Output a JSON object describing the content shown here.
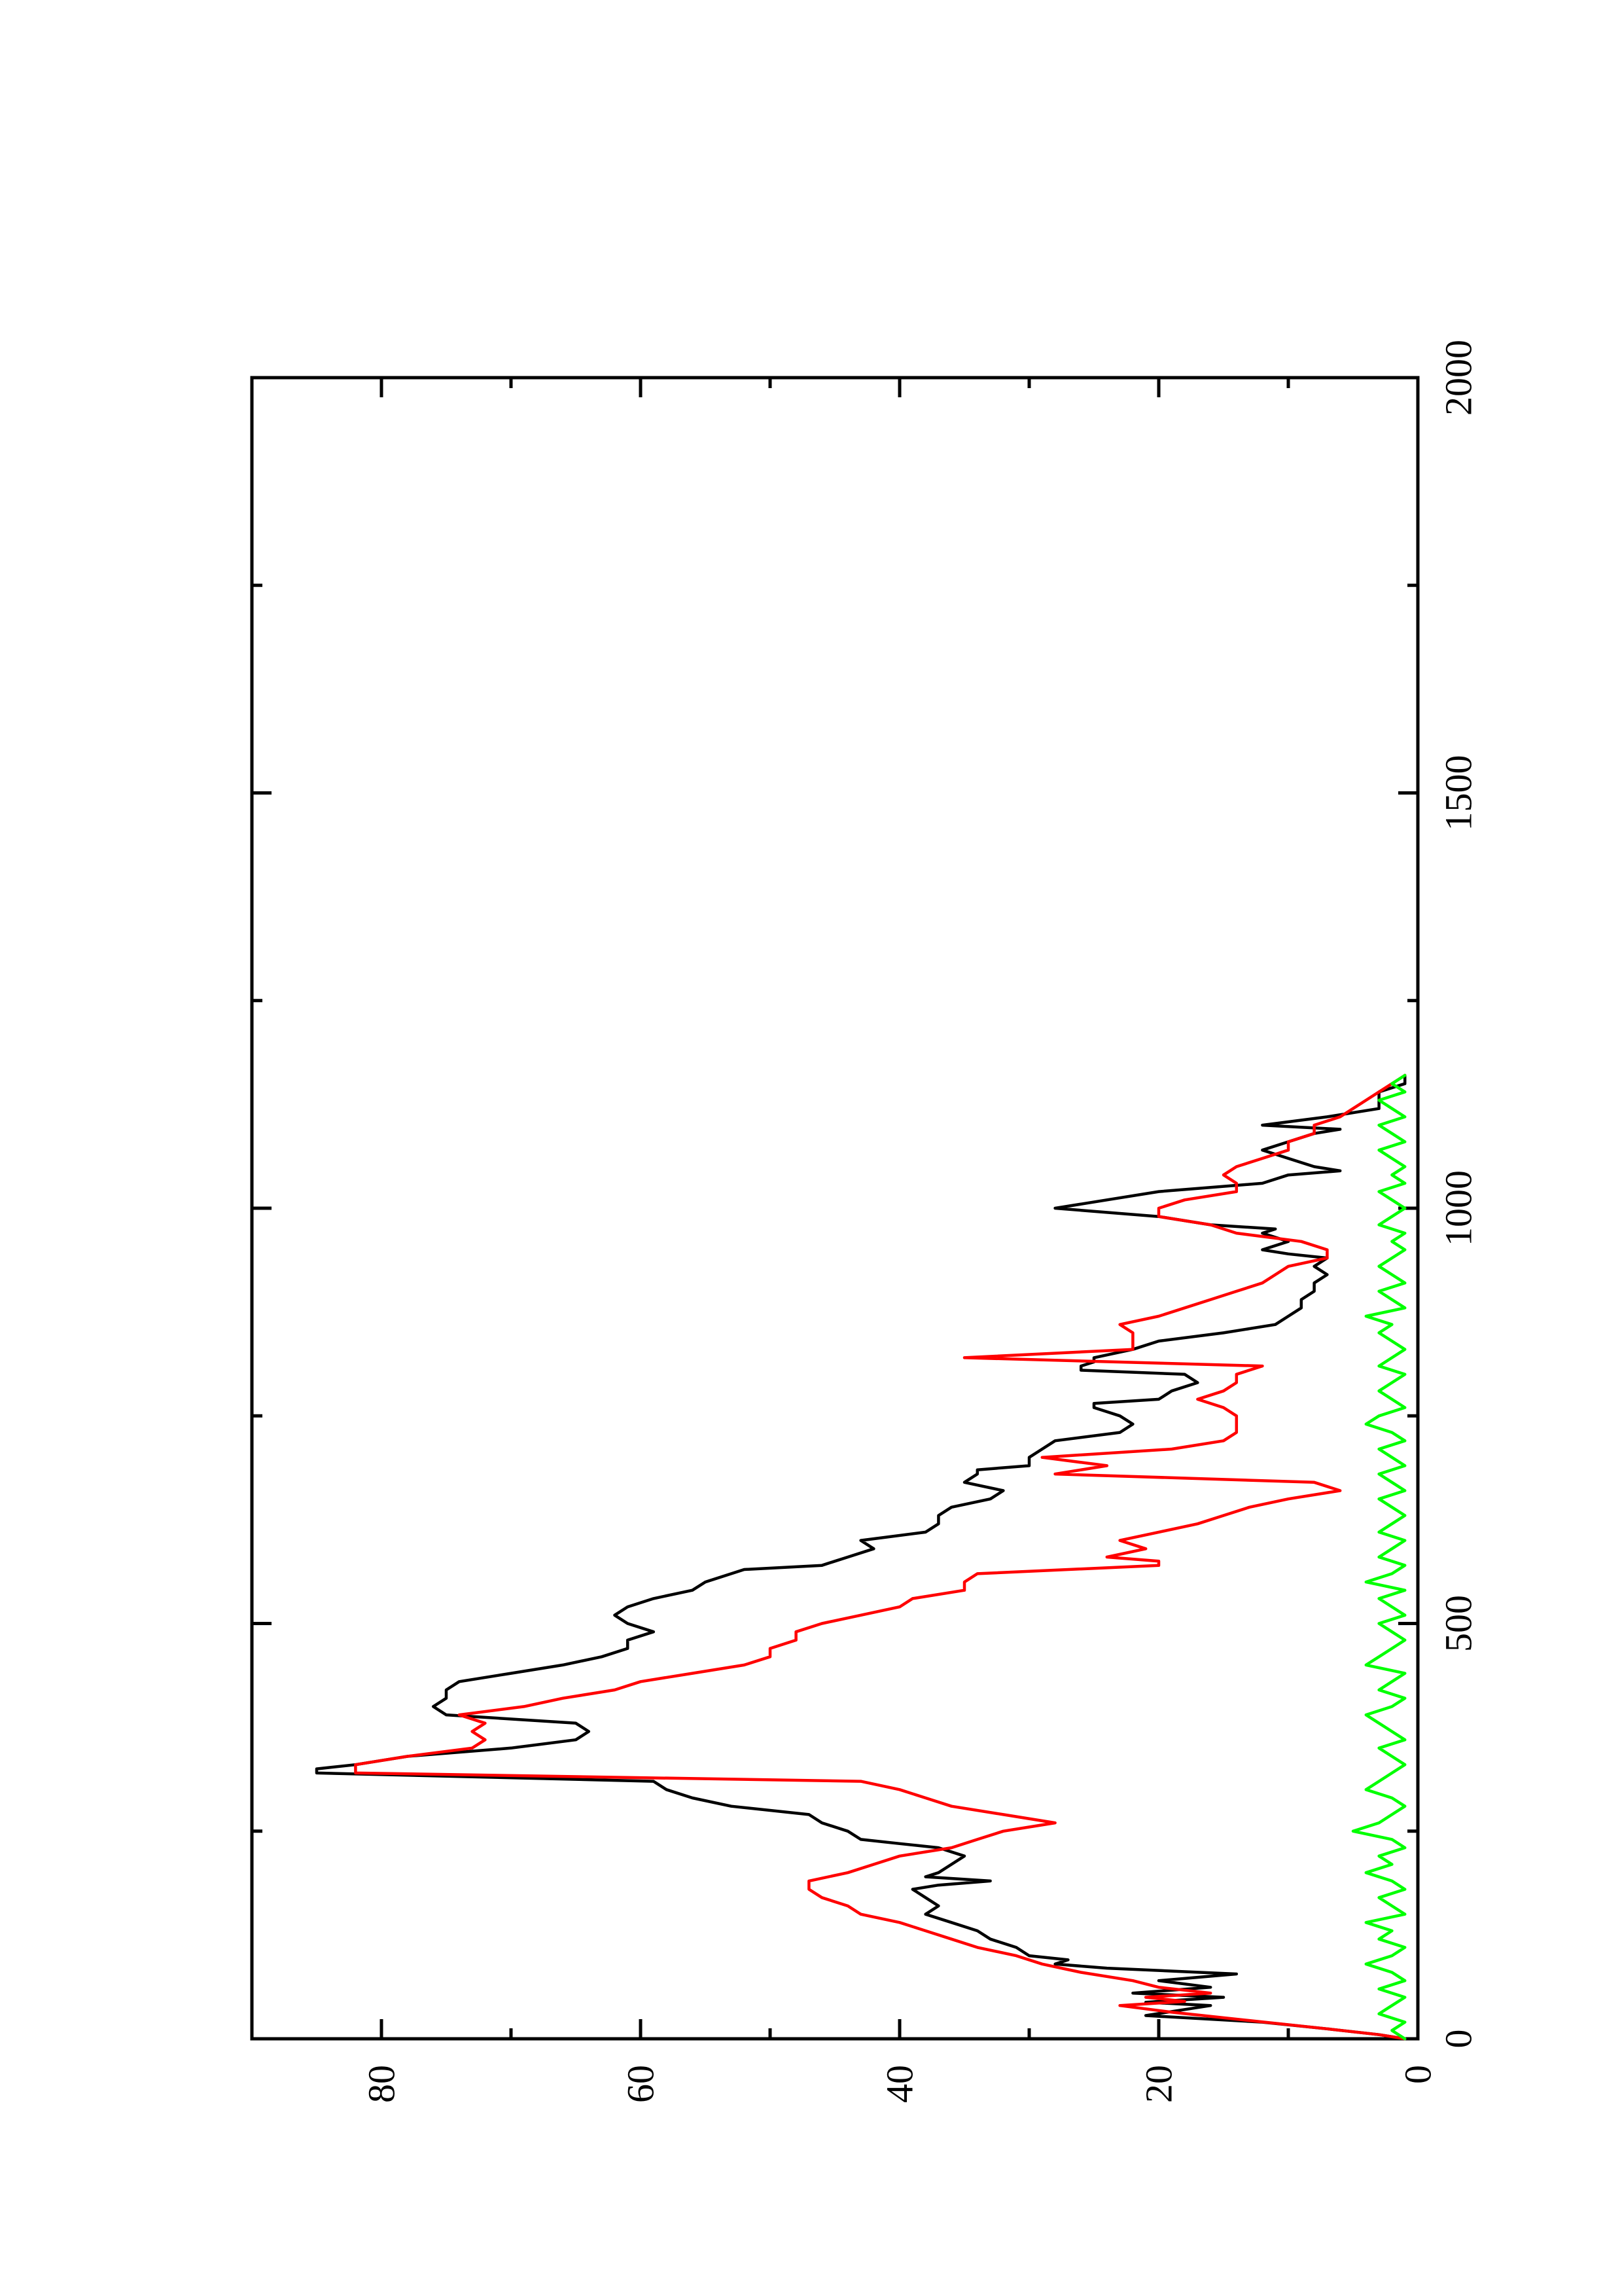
{
  "chart_data": {
    "type": "line",
    "orientation": "rotated-90",
    "title": "",
    "xlabel": "",
    "ylabel": "",
    "xlim": [
      0,
      2000
    ],
    "ylim": [
      0,
      90
    ],
    "x_ticks": [
      0,
      500,
      1000,
      1500,
      2000
    ],
    "x_minor_ticks": [
      250,
      750,
      1250,
      1750
    ],
    "y_ticks": [
      0,
      20,
      40,
      60,
      80
    ],
    "y_minor_ticks": [
      10,
      30,
      50,
      70
    ],
    "x_tick_labels": [
      "0",
      "500",
      "1000",
      "1500",
      "2000"
    ],
    "y_tick_labels": [
      "0",
      "20",
      "40",
      "60",
      "80"
    ],
    "grid": false,
    "legend": "none",
    "series": [
      {
        "color": "#000000",
        "x": [
          0,
          5,
          12,
          20,
          28,
          40,
          44,
          50,
          55,
          62,
          70,
          78,
          85,
          90,
          95,
          100,
          110,
          120,
          130,
          140,
          150,
          160,
          170,
          180,
          185,
          190,
          195,
          200,
          210,
          220,
          230,
          235,
          240,
          250,
          260,
          270,
          280,
          290,
          300,
          310,
          320,
          325,
          330,
          340,
          350,
          360,
          370,
          380,
          390,
          400,
          410,
          420,
          430,
          440,
          450,
          460,
          470,
          480,
          490,
          500,
          510,
          520,
          530,
          540,
          550,
          560,
          565,
          570,
          575,
          580,
          590,
          600,
          610,
          620,
          630,
          640,
          650,
          660,
          670,
          680,
          685,
          690,
          700,
          710,
          720,
          730,
          740,
          750,
          760,
          765,
          770,
          780,
          790,
          800,
          805,
          810,
          815,
          820,
          830,
          840,
          850,
          860,
          870,
          880,
          890,
          900,
          910,
          920,
          930,
          940,
          945,
          950,
          960,
          970,
          975,
          980,
          990,
          1000,
          1010,
          1020,
          1030,
          1040,
          1045,
          1050,
          1060,
          1070,
          1080,
          1090,
          1095,
          1100,
          1110,
          1120,
          1130,
          1140,
          1150,
          1160
        ],
        "y": [
          1,
          3,
          7,
          12,
          21,
          16,
          21,
          15,
          22,
          16,
          20,
          14,
          24,
          28,
          27,
          30,
          31,
          33,
          34,
          36,
          38,
          37,
          38,
          39,
          37,
          33,
          38,
          37,
          36,
          35,
          37,
          40,
          43,
          44,
          46,
          47,
          53,
          56,
          58,
          59,
          85,
          85,
          82,
          78,
          70,
          65,
          64,
          65,
          75,
          76,
          75,
          75,
          74,
          70,
          66,
          63,
          61,
          61,
          59,
          61,
          62,
          61,
          59,
          56,
          55,
          53,
          52,
          46,
          45,
          44,
          42,
          43,
          38,
          37,
          37,
          36,
          33,
          32,
          35,
          34,
          34,
          30,
          30,
          29,
          28,
          23,
          22,
          23,
          25,
          25,
          20,
          19,
          17,
          18,
          26,
          26,
          25,
          25,
          22,
          20,
          15,
          11,
          10,
          9,
          9,
          8,
          8,
          7,
          8,
          7,
          10,
          12,
          10,
          12,
          11,
          16,
          20,
          28,
          24,
          20,
          12,
          10,
          6,
          8,
          10,
          12,
          10,
          8,
          6,
          12,
          7,
          3,
          3,
          3,
          1,
          1
        ]
      },
      {
        "color": "#ff0000",
        "x": [
          0,
          5,
          12,
          22,
          32,
          40,
          45,
          50,
          55,
          62,
          70,
          80,
          90,
          100,
          110,
          120,
          130,
          140,
          150,
          160,
          170,
          180,
          190,
          200,
          210,
          220,
          230,
          240,
          250,
          260,
          270,
          280,
          290,
          300,
          310,
          320,
          330,
          340,
          350,
          360,
          370,
          380,
          390,
          400,
          410,
          420,
          430,
          440,
          450,
          460,
          470,
          480,
          490,
          500,
          510,
          520,
          530,
          540,
          550,
          560,
          570,
          575,
          580,
          590,
          600,
          610,
          620,
          630,
          640,
          650,
          660,
          670,
          680,
          690,
          700,
          710,
          720,
          730,
          740,
          750,
          760,
          770,
          780,
          790,
          800,
          810,
          820,
          830,
          840,
          850,
          860,
          870,
          880,
          890,
          900,
          910,
          920,
          930,
          940,
          950,
          960,
          970,
          980,
          990,
          1000,
          1010,
          1020,
          1030,
          1040,
          1050,
          1060,
          1070,
          1080,
          1090,
          1100,
          1110,
          1120,
          1130,
          1140,
          1150,
          1160
        ],
        "y": [
          1,
          3,
          7,
          13,
          19,
          23,
          18,
          21,
          16,
          20,
          22,
          26,
          29,
          31,
          34,
          36,
          38,
          40,
          43,
          44,
          46,
          47,
          47,
          44,
          42,
          40,
          36,
          34,
          32,
          28,
          32,
          36,
          38,
          40,
          43,
          82,
          82,
          78,
          73,
          72,
          73,
          72,
          74,
          69,
          66,
          62,
          60,
          56,
          52,
          50,
          50,
          48,
          48,
          46,
          43,
          40,
          39,
          35,
          35,
          34,
          20,
          20,
          24,
          21,
          23,
          20,
          17,
          15,
          13,
          10,
          6,
          8,
          28,
          24,
          29,
          19,
          15,
          14,
          14,
          14,
          15,
          17,
          15,
          14,
          14,
          12,
          35,
          22,
          22,
          22,
          23,
          20,
          18,
          16,
          14,
          12,
          11,
          10,
          7,
          7,
          9,
          14,
          16,
          20,
          20,
          18,
          14,
          14,
          15,
          14,
          12,
          10,
          10,
          8,
          8,
          6,
          5,
          4,
          3,
          2,
          1
        ]
      },
      {
        "color": "#00ff00",
        "x": [
          0,
          10,
          20,
          30,
          40,
          50,
          60,
          70,
          80,
          90,
          100,
          110,
          120,
          130,
          140,
          150,
          160,
          170,
          180,
          190,
          200,
          210,
          220,
          230,
          240,
          250,
          260,
          270,
          280,
          290,
          300,
          310,
          320,
          330,
          340,
          350,
          360,
          370,
          380,
          390,
          400,
          410,
          420,
          430,
          440,
          450,
          460,
          470,
          480,
          490,
          500,
          510,
          520,
          530,
          540,
          550,
          560,
          570,
          580,
          590,
          600,
          610,
          620,
          630,
          640,
          650,
          660,
          670,
          680,
          690,
          700,
          710,
          720,
          730,
          740,
          750,
          760,
          770,
          780,
          790,
          800,
          810,
          820,
          830,
          840,
          850,
          860,
          870,
          880,
          890,
          900,
          910,
          920,
          930,
          940,
          950,
          960,
          970,
          980,
          990,
          1000,
          1010,
          1020,
          1030,
          1040,
          1050,
          1060,
          1070,
          1080,
          1090,
          1100,
          1110,
          1120,
          1130,
          1140,
          1150,
          1160
        ],
        "y": [
          1,
          2,
          1,
          3,
          2,
          1,
          3,
          1,
          2,
          4,
          2,
          1,
          3,
          2,
          4,
          1,
          2,
          3,
          1,
          2,
          4,
          2,
          3,
          1,
          2,
          5,
          3,
          2,
          1,
          2,
          4,
          3,
          2,
          1,
          2,
          3,
          1,
          2,
          3,
          4,
          2,
          1,
          3,
          2,
          1,
          4,
          3,
          2,
          1,
          2,
          3,
          1,
          2,
          3,
          1,
          4,
          2,
          1,
          3,
          2,
          1,
          3,
          2,
          1,
          2,
          3,
          1,
          2,
          3,
          1,
          2,
          3,
          1,
          2,
          4,
          3,
          1,
          2,
          3,
          2,
          1,
          3,
          2,
          1,
          2,
          3,
          2,
          4,
          1,
          2,
          3,
          1,
          2,
          3,
          2,
          1,
          2,
          1,
          3,
          2,
          1,
          2,
          3,
          1,
          2,
          1,
          2,
          3,
          1,
          2,
          3,
          1,
          2,
          3,
          1,
          2,
          1
        ]
      }
    ]
  }
}
